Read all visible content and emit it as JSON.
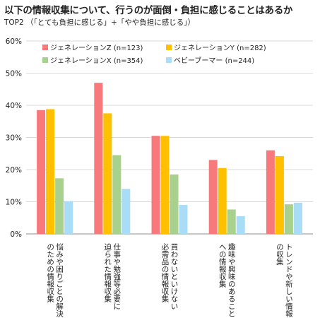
{
  "header": {
    "title": "以下の情報収集について、行うのが面倒・負担に感じることはあるか",
    "subtitle": "TOP2 （「とても負担に感じる」+「やや負担に感じる」）"
  },
  "chart_data": {
    "type": "bar",
    "categories": [
      [
        "悩みや困りごとの解決",
        "のための情報収集"
      ],
      [
        "仕事や勉強等必要に",
        "迫られた情報収集"
      ],
      [
        "買わないといけない",
        "必需品の情報収集"
      ],
      [
        "趣味や興味のあること",
        "への情報収集"
      ],
      [
        "トレンドや新しい情報",
        "の収集"
      ]
    ],
    "series": [
      {
        "name": "ジェネレーションZ (n=123)",
        "color": "#f8797c",
        "values": [
          38.5,
          47.0,
          30.5,
          23.0,
          26.0
        ]
      },
      {
        "name": "ジェネレーションY (n=282)",
        "color": "#ffc000",
        "values": [
          38.8,
          37.5,
          30.5,
          20.5,
          24.2
        ]
      },
      {
        "name": "ジェネレーションX (n=354)",
        "color": "#a9d18e",
        "values": [
          17.3,
          24.5,
          18.5,
          7.6,
          9.2
        ]
      },
      {
        "name": "ベビーブーマー (n=244)",
        "color": "#a9dcf6",
        "values": [
          10.2,
          14.0,
          9.0,
          5.5,
          9.7
        ]
      }
    ],
    "yticks": [
      "0%",
      "10%",
      "20%",
      "30%",
      "40%",
      "50%",
      "60%"
    ],
    "ylim": [
      0,
      60
    ],
    "grid": true,
    "legend_position": "top-inside"
  }
}
